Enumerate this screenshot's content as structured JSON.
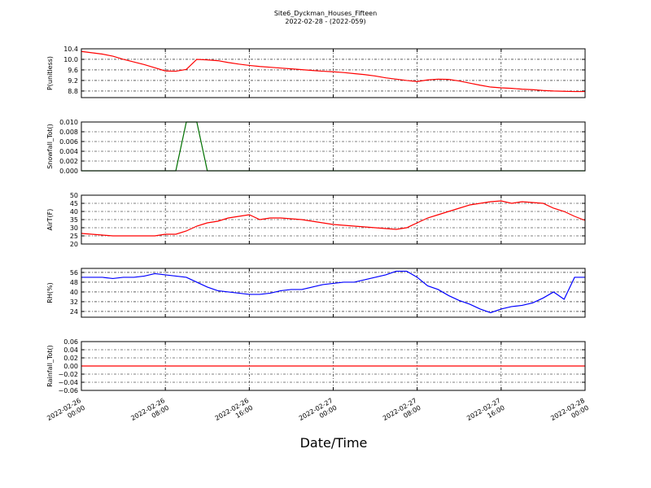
{
  "title": "Site6_Dyckman_Houses_Fifteen",
  "subtitle": "2022-02-28 - (2022-059)",
  "xlabel": "Date/Time",
  "chart_data": [
    {
      "type": "line",
      "ylabel": "P(unitless)",
      "grid": true,
      "x": [
        "2022-02-26 00:00",
        "2022-02-26 01:00",
        "2022-02-26 02:00",
        "2022-02-26 03:00",
        "2022-02-26 04:00",
        "2022-02-26 05:00",
        "2022-02-26 06:00",
        "2022-02-26 07:00",
        "2022-02-26 08:00",
        "2022-02-26 09:00",
        "2022-02-26 10:00",
        "2022-02-26 11:00",
        "2022-02-26 12:00",
        "2022-02-26 13:00",
        "2022-02-26 14:00",
        "2022-02-26 15:00",
        "2022-02-26 16:00",
        "2022-02-26 17:00",
        "2022-02-26 18:00",
        "2022-02-26 19:00",
        "2022-02-26 20:00",
        "2022-02-26 21:00",
        "2022-02-26 22:00",
        "2022-02-26 23:00",
        "2022-02-27 00:00",
        "2022-02-27 01:00",
        "2022-02-27 02:00",
        "2022-02-27 03:00",
        "2022-02-27 04:00",
        "2022-02-27 05:00",
        "2022-02-27 06:00",
        "2022-02-27 07:00",
        "2022-02-27 08:00",
        "2022-02-27 09:00",
        "2022-02-27 10:00",
        "2022-02-27 11:00",
        "2022-02-27 12:00",
        "2022-02-27 13:00",
        "2022-02-27 14:00",
        "2022-02-27 15:00",
        "2022-02-27 16:00",
        "2022-02-27 17:00",
        "2022-02-27 18:00",
        "2022-02-27 19:00",
        "2022-02-27 20:00",
        "2022-02-27 21:00",
        "2022-02-27 22:00",
        "2022-02-27 23:00",
        "2022-02-28 00:00"
      ],
      "xlim": [
        "2022-02-26 00:00",
        "2022-02-28 00:00"
      ],
      "xticks": [
        "2022-02-26 00:00",
        "2022-02-26 08:00",
        "2022-02-26 16:00",
        "2022-02-27 00:00",
        "2022-02-27 08:00",
        "2022-02-27 16:00",
        "2022-02-28 00:00"
      ],
      "ylim": [
        8.55,
        10.4
      ],
      "yticks": [
        8.8,
        9.2,
        9.6,
        {
          "value": 10,
          "label": "10.0"
        },
        10.4
      ],
      "series": [
        {
          "color": "#ff0000",
          "values": [
            10.3,
            10.25,
            10.2,
            10.12,
            10.0,
            9.9,
            9.8,
            9.68,
            9.56,
            9.55,
            9.62,
            10.0,
            9.98,
            9.95,
            9.88,
            9.82,
            9.77,
            9.73,
            9.7,
            9.67,
            9.64,
            9.61,
            9.58,
            9.55,
            9.53,
            9.5,
            9.46,
            9.42,
            9.37,
            9.3,
            9.25,
            9.2,
            9.16,
            9.22,
            9.25,
            9.24,
            9.18,
            9.1,
            9.02,
            8.95,
            8.92,
            8.9,
            8.87,
            8.85,
            8.82,
            8.8,
            8.79,
            8.78,
            8.78
          ]
        }
      ]
    },
    {
      "type": "line",
      "ylabel": "Snowfall_Tot()",
      "grid": true,
      "x": [
        "2022-02-26 00:00",
        "2022-02-26 01:00",
        "2022-02-26 02:00",
        "2022-02-26 03:00",
        "2022-02-26 04:00",
        "2022-02-26 05:00",
        "2022-02-26 06:00",
        "2022-02-26 07:00",
        "2022-02-26 08:00",
        "2022-02-26 09:00",
        "2022-02-26 10:00",
        "2022-02-26 11:00",
        "2022-02-26 12:00",
        "2022-02-26 13:00",
        "2022-02-26 14:00",
        "2022-02-26 15:00",
        "2022-02-26 16:00",
        "2022-02-26 17:00",
        "2022-02-26 18:00",
        "2022-02-26 19:00",
        "2022-02-26 20:00",
        "2022-02-26 21:00",
        "2022-02-26 22:00",
        "2022-02-26 23:00",
        "2022-02-27 00:00",
        "2022-02-27 01:00",
        "2022-02-27 02:00",
        "2022-02-27 03:00",
        "2022-02-27 04:00",
        "2022-02-27 05:00",
        "2022-02-27 06:00",
        "2022-02-27 07:00",
        "2022-02-27 08:00",
        "2022-02-27 09:00",
        "2022-02-27 10:00",
        "2022-02-27 11:00",
        "2022-02-27 12:00",
        "2022-02-27 13:00",
        "2022-02-27 14:00",
        "2022-02-27 15:00",
        "2022-02-27 16:00",
        "2022-02-27 17:00",
        "2022-02-27 18:00",
        "2022-02-27 19:00",
        "2022-02-27 20:00",
        "2022-02-27 21:00",
        "2022-02-27 22:00",
        "2022-02-27 23:00",
        "2022-02-28 00:00"
      ],
      "xlim": [
        "2022-02-26 00:00",
        "2022-02-28 00:00"
      ],
      "xticks": [
        "2022-02-26 00:00",
        "2022-02-26 08:00",
        "2022-02-26 16:00",
        "2022-02-27 00:00",
        "2022-02-27 08:00",
        "2022-02-27 16:00",
        "2022-02-28 00:00"
      ],
      "ylim": [
        0,
        0.01
      ],
      "yticks": [
        {
          "value": 0,
          "label": "0.000"
        },
        {
          "value": 0.002,
          "label": "0.002"
        },
        {
          "value": 0.004,
          "label": "0.004"
        },
        {
          "value": 0.006,
          "label": "0.006"
        },
        {
          "value": 0.008,
          "label": "0.008"
        },
        {
          "value": 0.01,
          "label": "0.010"
        }
      ],
      "series": [
        {
          "color": "#007000",
          "values": [
            0,
            0,
            0,
            0,
            0,
            0,
            0,
            0,
            0,
            0,
            0.01,
            0.01,
            0,
            0,
            0,
            0,
            0,
            0,
            0,
            0,
            0,
            0,
            0,
            0,
            0,
            0,
            0,
            0,
            0,
            0,
            0,
            0,
            0,
            0,
            0,
            0,
            0,
            0,
            0,
            0,
            0,
            0,
            0,
            0,
            0,
            0,
            0,
            0,
            0
          ]
        }
      ]
    },
    {
      "type": "line",
      "ylabel": "AirT(F)",
      "grid": true,
      "x": [
        "2022-02-26 00:00",
        "2022-02-26 01:00",
        "2022-02-26 02:00",
        "2022-02-26 03:00",
        "2022-02-26 04:00",
        "2022-02-26 05:00",
        "2022-02-26 06:00",
        "2022-02-26 07:00",
        "2022-02-26 08:00",
        "2022-02-26 09:00",
        "2022-02-26 10:00",
        "2022-02-26 11:00",
        "2022-02-26 12:00",
        "2022-02-26 13:00",
        "2022-02-26 14:00",
        "2022-02-26 15:00",
        "2022-02-26 16:00",
        "2022-02-26 17:00",
        "2022-02-26 18:00",
        "2022-02-26 19:00",
        "2022-02-26 20:00",
        "2022-02-26 21:00",
        "2022-02-26 22:00",
        "2022-02-26 23:00",
        "2022-02-27 00:00",
        "2022-02-27 01:00",
        "2022-02-27 02:00",
        "2022-02-27 03:00",
        "2022-02-27 04:00",
        "2022-02-27 05:00",
        "2022-02-27 06:00",
        "2022-02-27 07:00",
        "2022-02-27 08:00",
        "2022-02-27 09:00",
        "2022-02-27 10:00",
        "2022-02-27 11:00",
        "2022-02-27 12:00",
        "2022-02-27 13:00",
        "2022-02-27 14:00",
        "2022-02-27 15:00",
        "2022-02-27 16:00",
        "2022-02-27 17:00",
        "2022-02-27 18:00",
        "2022-02-27 19:00",
        "2022-02-27 20:00",
        "2022-02-27 21:00",
        "2022-02-27 22:00",
        "2022-02-27 23:00",
        "2022-02-28 00:00"
      ],
      "xlim": [
        "2022-02-26 00:00",
        "2022-02-28 00:00"
      ],
      "xticks": [
        "2022-02-26 00:00",
        "2022-02-26 08:00",
        "2022-02-26 16:00",
        "2022-02-27 00:00",
        "2022-02-27 08:00",
        "2022-02-27 16:00",
        "2022-02-28 00:00"
      ],
      "ylim": [
        20,
        50
      ],
      "yticks": [
        20,
        25,
        30,
        35,
        40,
        45,
        50
      ],
      "series": [
        {
          "color": "#ff0000",
          "values": [
            26.5,
            26,
            25.5,
            25,
            25,
            25,
            25,
            25,
            26,
            26,
            28,
            31,
            33,
            34,
            36,
            37,
            38,
            35,
            36,
            36,
            35.5,
            35,
            34,
            33,
            32,
            31.5,
            31,
            30.5,
            30,
            29.5,
            29,
            30,
            33,
            36,
            38,
            40,
            42,
            44,
            45,
            46,
            46.5,
            45,
            46,
            45.5,
            45,
            42,
            40,
            37,
            34.5
          ]
        }
      ]
    },
    {
      "type": "line",
      "ylabel": "RH(%)",
      "grid": true,
      "x": [
        "2022-02-26 00:00",
        "2022-02-26 01:00",
        "2022-02-26 02:00",
        "2022-02-26 03:00",
        "2022-02-26 04:00",
        "2022-02-26 05:00",
        "2022-02-26 06:00",
        "2022-02-26 07:00",
        "2022-02-26 08:00",
        "2022-02-26 09:00",
        "2022-02-26 10:00",
        "2022-02-26 11:00",
        "2022-02-26 12:00",
        "2022-02-26 13:00",
        "2022-02-26 14:00",
        "2022-02-26 15:00",
        "2022-02-26 16:00",
        "2022-02-26 17:00",
        "2022-02-26 18:00",
        "2022-02-26 19:00",
        "2022-02-26 20:00",
        "2022-02-26 21:00",
        "2022-02-26 22:00",
        "2022-02-26 23:00",
        "2022-02-27 00:00",
        "2022-02-27 01:00",
        "2022-02-27 02:00",
        "2022-02-27 03:00",
        "2022-02-27 04:00",
        "2022-02-27 05:00",
        "2022-02-27 06:00",
        "2022-02-27 07:00",
        "2022-02-27 08:00",
        "2022-02-27 09:00",
        "2022-02-27 10:00",
        "2022-02-27 11:00",
        "2022-02-27 12:00",
        "2022-02-27 13:00",
        "2022-02-27 14:00",
        "2022-02-27 15:00",
        "2022-02-27 16:00",
        "2022-02-27 17:00",
        "2022-02-27 18:00",
        "2022-02-27 19:00",
        "2022-02-27 20:00",
        "2022-02-27 21:00",
        "2022-02-27 22:00",
        "2022-02-27 23:00",
        "2022-02-28 00:00"
      ],
      "xlim": [
        "2022-02-26 00:00",
        "2022-02-28 00:00"
      ],
      "xticks": [
        "2022-02-26 00:00",
        "2022-02-26 08:00",
        "2022-02-26 16:00",
        "2022-02-27 00:00",
        "2022-02-27 08:00",
        "2022-02-27 16:00",
        "2022-02-28 00:00"
      ],
      "ylim": [
        19.3,
        59.3
      ],
      "yticks": [
        24,
        32,
        40,
        48,
        56
      ],
      "series": [
        {
          "color": "#0000ff",
          "values": [
            52,
            52,
            52,
            51,
            52,
            52,
            53,
            55,
            54,
            53,
            52,
            48,
            44,
            41,
            40,
            39,
            38,
            38,
            39,
            41,
            42,
            42,
            44,
            46,
            47,
            48,
            48,
            50,
            52,
            54,
            57,
            57,
            52,
            45,
            42,
            37,
            33,
            30,
            26,
            23,
            26,
            28,
            29,
            31,
            35,
            40,
            34,
            52,
            52
          ]
        }
      ]
    },
    {
      "type": "line",
      "ylabel": "Rainfall_Tot()",
      "grid": true,
      "x": [
        "2022-02-26 00:00",
        "2022-02-26 01:00",
        "2022-02-26 02:00",
        "2022-02-26 03:00",
        "2022-02-26 04:00",
        "2022-02-26 05:00",
        "2022-02-26 06:00",
        "2022-02-26 07:00",
        "2022-02-26 08:00",
        "2022-02-26 09:00",
        "2022-02-26 10:00",
        "2022-02-26 11:00",
        "2022-02-26 12:00",
        "2022-02-26 13:00",
        "2022-02-26 14:00",
        "2022-02-26 15:00",
        "2022-02-26 16:00",
        "2022-02-26 17:00",
        "2022-02-26 18:00",
        "2022-02-26 19:00",
        "2022-02-26 20:00",
        "2022-02-26 21:00",
        "2022-02-26 22:00",
        "2022-02-26 23:00",
        "2022-02-27 00:00",
        "2022-02-27 01:00",
        "2022-02-27 02:00",
        "2022-02-27 03:00",
        "2022-02-27 04:00",
        "2022-02-27 05:00",
        "2022-02-27 06:00",
        "2022-02-27 07:00",
        "2022-02-27 08:00",
        "2022-02-27 09:00",
        "2022-02-27 10:00",
        "2022-02-27 11:00",
        "2022-02-27 12:00",
        "2022-02-27 13:00",
        "2022-02-27 14:00",
        "2022-02-27 15:00",
        "2022-02-27 16:00",
        "2022-02-27 17:00",
        "2022-02-27 18:00",
        "2022-02-27 19:00",
        "2022-02-27 20:00",
        "2022-02-27 21:00",
        "2022-02-27 22:00",
        "2022-02-27 23:00",
        "2022-02-28 00:00"
      ],
      "xlim": [
        "2022-02-26 00:00",
        "2022-02-28 00:00"
      ],
      "xticks": [
        "2022-02-26 00:00",
        "2022-02-26 08:00",
        "2022-02-26 16:00",
        "2022-02-27 00:00",
        "2022-02-27 08:00",
        "2022-02-27 16:00",
        "2022-02-28 00:00"
      ],
      "show_xtick_labels": true,
      "ylim": [
        -0.06,
        0.06
      ],
      "yticks": [
        {
          "value": -0.06,
          "label": "−0.06"
        },
        {
          "value": -0.04,
          "label": "−0.04"
        },
        {
          "value": -0.02,
          "label": "−0.02"
        },
        {
          "value": 0,
          "label": "0.00"
        },
        {
          "value": 0.02,
          "label": "0.02"
        },
        {
          "value": 0.04,
          "label": "0.04"
        },
        {
          "value": 0.06,
          "label": "0.06"
        }
      ],
      "series": [
        {
          "color": "#ff0000",
          "values": [
            0,
            0,
            0,
            0,
            0,
            0,
            0,
            0,
            0,
            0,
            0,
            0,
            0,
            0,
            0,
            0,
            0,
            0,
            0,
            0,
            0,
            0,
            0,
            0,
            0,
            0,
            0,
            0,
            0,
            0,
            0,
            0,
            0,
            0,
            0,
            0,
            0,
            0,
            0,
            0,
            0,
            0,
            0,
            0,
            0,
            0,
            0,
            0,
            0
          ]
        }
      ]
    }
  ]
}
